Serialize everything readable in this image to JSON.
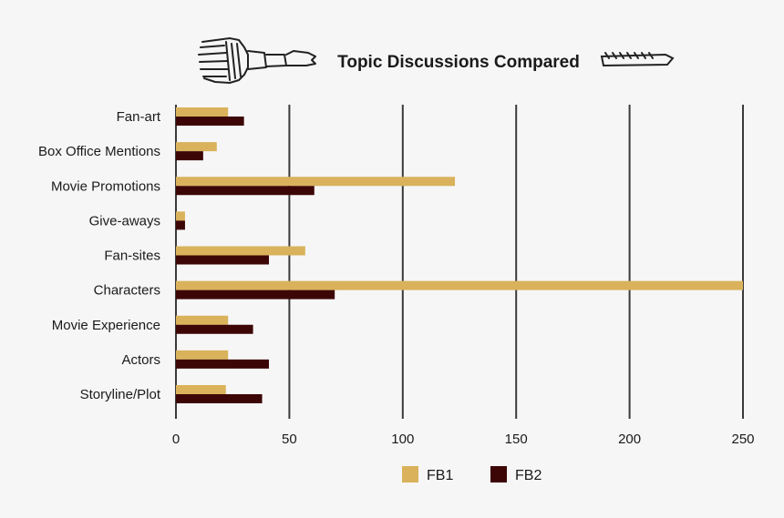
{
  "chart_data": {
    "type": "bar",
    "orientation": "horizontal",
    "title": "Topic Discussions Compared",
    "categories": [
      "Fan-art",
      "Box Office Mentions",
      "Movie Promotions",
      "Give-aways",
      "Fan-sites",
      "Characters",
      "Movie Experience",
      "Actors",
      "Storyline/Plot"
    ],
    "series": [
      {
        "name": "FB1",
        "color": "#d9b25b",
        "values": [
          23,
          18,
          123,
          4,
          57,
          250,
          23,
          23,
          22
        ]
      },
      {
        "name": "FB2",
        "color": "#3d0606",
        "values": [
          30,
          12,
          61,
          4,
          41,
          70,
          34,
          41,
          38
        ]
      }
    ],
    "xlim": [
      0,
      250
    ],
    "xticks": [
      "0",
      "50",
      "100",
      "150",
      "200",
      "250"
    ],
    "grid": "vertical",
    "legend": "bottom-center",
    "decorations": [
      "paintbrush-icon",
      "brush-stroke-icon"
    ]
  }
}
